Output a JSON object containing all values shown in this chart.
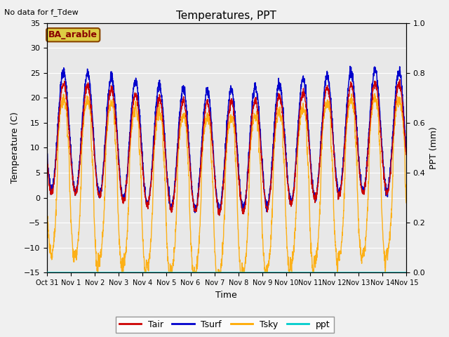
{
  "title": "Temperatures, PPT",
  "note": "No data for f_Tdew",
  "label": "BA_arable",
  "xlabel": "Time",
  "ylabel_left": "Temperature (C)",
  "ylabel_right": "PPT (mm)",
  "ylim_left": [
    -15,
    35
  ],
  "ylim_right": [
    0.0,
    1.0
  ],
  "colors": {
    "Tair": "#cc0000",
    "Tsurf": "#0000cc",
    "Tsky": "#ffaa00",
    "ppt": "#00cccc"
  },
  "legend_labels": [
    "Tair",
    "Tsurf",
    "Tsky",
    "ppt"
  ],
  "bg_color": "#e8e8e8",
  "grid_color": "#ffffff",
  "label_bg": "#ddcc44",
  "label_border": "#884400",
  "fig_bg": "#f0f0f0"
}
